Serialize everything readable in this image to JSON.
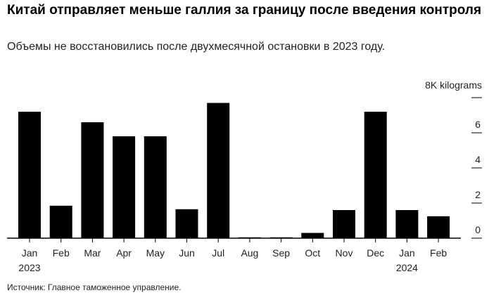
{
  "header": {
    "title": "Китай отправляет меньше галлия за границу после введения контроля",
    "subtitle": "Объемы не восстановились после двухмесячной остановки в 2023 году."
  },
  "footer": {
    "source": "Источник: Главное таможенное управление."
  },
  "chart_data": {
    "type": "bar",
    "categories": [
      "Jan",
      "Feb",
      "Mar",
      "Apr",
      "May",
      "Jun",
      "Jul",
      "Aug",
      "Sep",
      "Oct",
      "Nov",
      "Dec",
      "Jan",
      "Feb"
    ],
    "year_labels": [
      "2023",
      "",
      "",
      "",
      "",
      "",
      "",
      "",
      "",
      "",
      "",
      "",
      "2024",
      ""
    ],
    "values": [
      7.2,
      1.85,
      6.6,
      5.8,
      5.8,
      1.65,
      7.7,
      0.05,
      0.05,
      0.3,
      1.6,
      7.2,
      1.6,
      1.25
    ],
    "ylim": [
      0,
      8
    ],
    "yticks": [
      0,
      2,
      4,
      6
    ],
    "unit_label": "8K kilograms",
    "bar_color": "#000000",
    "grid": false
  }
}
